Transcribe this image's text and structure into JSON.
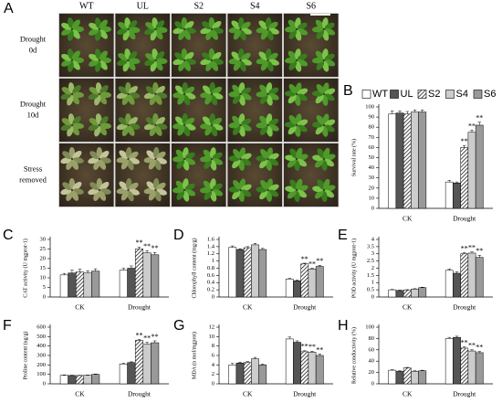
{
  "photo_panel": {
    "label": "A",
    "columns": [
      "WT",
      "UL",
      "S2",
      "S4",
      "S6"
    ],
    "rows": [
      [
        "Drought",
        "0d"
      ],
      [
        "Drought",
        "10d"
      ],
      [
        "Stress",
        "removed"
      ]
    ]
  },
  "chart_data": [
    {
      "type": "bar",
      "panel_label": "B",
      "ylabel": "Survival rate (%)",
      "categories": [
        "CK",
        "Drought"
      ],
      "ylim": [
        0,
        100
      ],
      "yticks": [
        0,
        10,
        20,
        30,
        40,
        50,
        60,
        70,
        80,
        90,
        100
      ],
      "legend": "top",
      "series": [
        {
          "name": "WT",
          "color": "#ffffff",
          "values": [
            93,
            26
          ],
          "errors": [
            3,
            1.5
          ],
          "significance": [
            null,
            null
          ]
        },
        {
          "name": "UL",
          "color": "#555555",
          "values": [
            94,
            25
          ],
          "errors": [
            2,
            1
          ],
          "significance": [
            null,
            null
          ]
        },
        {
          "name": "S2",
          "color": "#ffffff",
          "pattern": "hatch",
          "values": [
            93,
            60
          ],
          "errors": [
            2.5,
            2
          ],
          "significance": [
            null,
            "**"
          ]
        },
        {
          "name": "S4",
          "color": "#cccccc",
          "values": [
            95,
            75
          ],
          "errors": [
            2,
            2
          ],
          "significance": [
            null,
            "**"
          ]
        },
        {
          "name": "S6",
          "color": "#999999",
          "values": [
            95,
            82
          ],
          "errors": [
            2,
            3
          ],
          "significance": [
            null,
            "**"
          ]
        }
      ]
    },
    {
      "type": "bar",
      "panel_label": "C",
      "ylabel": "CAT activity (U mgprot-1)",
      "categories": [
        "CK",
        "Drought"
      ],
      "ylim": [
        0,
        30
      ],
      "yticks": [
        0,
        5,
        10,
        15,
        20,
        25,
        30
      ],
      "series": [
        {
          "color": "#ffffff",
          "values": [
            11.5,
            14
          ],
          "errors": [
            0.8,
            1
          ],
          "significance": [
            null,
            null
          ]
        },
        {
          "color": "#555555",
          "values": [
            12.5,
            15
          ],
          "errors": [
            1.5,
            1.2
          ],
          "significance": [
            null,
            null
          ]
        },
        {
          "color": "#ffffff",
          "pattern": "hatch",
          "values": [
            13,
            25
          ],
          "errors": [
            1.5,
            1
          ],
          "significance": [
            null,
            "**"
          ]
        },
        {
          "color": "#cccccc",
          "values": [
            12.5,
            23
          ],
          "errors": [
            1.2,
            1.2
          ],
          "significance": [
            null,
            "**"
          ]
        },
        {
          "color": "#999999",
          "values": [
            13.5,
            22
          ],
          "errors": [
            1.2,
            1.2
          ],
          "significance": [
            null,
            "**"
          ]
        }
      ]
    },
    {
      "type": "bar",
      "panel_label": "D",
      "ylabel": "Chlorophyll content (mg/g)",
      "categories": [
        "CK",
        "Drought"
      ],
      "ylim": [
        0,
        1.6
      ],
      "yticks": [
        0,
        0.2,
        0.4,
        0.6,
        0.8,
        1,
        1.2,
        1.4,
        1.6
      ],
      "series": [
        {
          "color": "#ffffff",
          "values": [
            1.38,
            0.5
          ],
          "errors": [
            0.04,
            0.02
          ],
          "significance": [
            null,
            null
          ]
        },
        {
          "color": "#555555",
          "values": [
            1.32,
            0.45
          ],
          "errors": [
            0.02,
            0.02
          ],
          "significance": [
            null,
            null
          ]
        },
        {
          "color": "#ffffff",
          "pattern": "hatch",
          "values": [
            1.37,
            0.92
          ],
          "errors": [
            0.03,
            0.02
          ],
          "significance": [
            null,
            "**"
          ]
        },
        {
          "color": "#cccccc",
          "values": [
            1.45,
            0.78
          ],
          "errors": [
            0.04,
            0.02
          ],
          "significance": [
            null,
            "**"
          ]
        },
        {
          "color": "#999999",
          "values": [
            1.32,
            0.85
          ],
          "errors": [
            0.03,
            0.03
          ],
          "significance": [
            null,
            "**"
          ]
        }
      ]
    },
    {
      "type": "bar",
      "panel_label": "E",
      "ylabel": "POD activity (U mgprot-1)",
      "categories": [
        "CK",
        "Drought"
      ],
      "ylim": [
        0,
        4
      ],
      "yticks": [
        0,
        0.5,
        1,
        1.5,
        2,
        2.5,
        3,
        3.5,
        4
      ],
      "series": [
        {
          "color": "#ffffff",
          "values": [
            0.5,
            1.85
          ],
          "errors": [
            0.03,
            0.1
          ],
          "significance": [
            null,
            null
          ]
        },
        {
          "color": "#555555",
          "values": [
            0.45,
            1.65
          ],
          "errors": [
            0.03,
            0.1
          ],
          "significance": [
            null,
            null
          ]
        },
        {
          "color": "#ffffff",
          "pattern": "hatch",
          "values": [
            0.48,
            3.0
          ],
          "errors": [
            0.03,
            0.08
          ],
          "significance": [
            null,
            "**"
          ]
        },
        {
          "color": "#cccccc",
          "values": [
            0.55,
            3.05
          ],
          "errors": [
            0.03,
            0.08
          ],
          "significance": [
            null,
            "**"
          ]
        },
        {
          "color": "#999999",
          "values": [
            0.65,
            2.75
          ],
          "errors": [
            0.03,
            0.15
          ],
          "significance": [
            null,
            "**"
          ]
        }
      ]
    },
    {
      "type": "bar",
      "panel_label": "F",
      "ylabel": "Proline content (ug/g)",
      "categories": [
        "CK",
        "Drought"
      ],
      "ylim": [
        0,
        600
      ],
      "yticks": [
        0,
        100,
        200,
        300,
        400,
        500,
        600
      ],
      "series": [
        {
          "color": "#ffffff",
          "values": [
            90,
            210
          ],
          "errors": [
            4,
            8
          ],
          "significance": [
            null,
            null
          ]
        },
        {
          "color": "#555555",
          "values": [
            88,
            225
          ],
          "errors": [
            4,
            8
          ],
          "significance": [
            null,
            null
          ]
        },
        {
          "color": "#ffffff",
          "pattern": "hatch",
          "values": [
            88,
            460
          ],
          "errors": [
            3,
            10
          ],
          "significance": [
            null,
            "**"
          ]
        },
        {
          "color": "#cccccc",
          "values": [
            90,
            420
          ],
          "errors": [
            3,
            20
          ],
          "significance": [
            null,
            "**"
          ]
        },
        {
          "color": "#999999",
          "values": [
            100,
            435
          ],
          "errors": [
            4,
            20
          ],
          "significance": [
            null,
            "**"
          ]
        }
      ]
    },
    {
      "type": "bar",
      "panel_label": "G",
      "ylabel": "MDA (n mol/mgprot)",
      "categories": [
        "CK",
        "Drought"
      ],
      "ylim": [
        0,
        12
      ],
      "yticks": [
        0,
        2,
        4,
        6,
        8,
        10,
        12
      ],
      "series": [
        {
          "color": "#ffffff",
          "values": [
            4.0,
            9.5
          ],
          "errors": [
            0.3,
            0.4
          ],
          "significance": [
            null,
            null
          ]
        },
        {
          "color": "#555555",
          "values": [
            4.4,
            8.8
          ],
          "errors": [
            0.2,
            0.3
          ],
          "significance": [
            null,
            null
          ]
        },
        {
          "color": "#ffffff",
          "pattern": "hatch",
          "values": [
            4.5,
            6.8
          ],
          "errors": [
            0.2,
            0.2
          ],
          "significance": [
            null,
            "**"
          ]
        },
        {
          "color": "#cccccc",
          "values": [
            5.3,
            6.7
          ],
          "errors": [
            0.3,
            0.2
          ],
          "significance": [
            null,
            "**"
          ]
        },
        {
          "color": "#999999",
          "values": [
            4.0,
            6.0
          ],
          "errors": [
            0.2,
            0.3
          ],
          "significance": [
            null,
            "**"
          ]
        }
      ]
    },
    {
      "type": "bar",
      "panel_label": "H",
      "ylabel": "Relative conductivity (%)",
      "categories": [
        "CK",
        "Drought"
      ],
      "ylim": [
        0,
        100
      ],
      "yticks": [
        0,
        20,
        40,
        60,
        80,
        100
      ],
      "series": [
        {
          "color": "#ffffff",
          "values": [
            24,
            80
          ],
          "errors": [
            1,
            2
          ],
          "significance": [
            null,
            null
          ]
        },
        {
          "color": "#555555",
          "values": [
            22,
            82
          ],
          "errors": [
            1,
            2
          ],
          "significance": [
            null,
            null
          ]
        },
        {
          "color": "#ffffff",
          "pattern": "hatch",
          "values": [
            28,
            63
          ],
          "errors": [
            1,
            2
          ],
          "significance": [
            null,
            "**"
          ]
        },
        {
          "color": "#cccccc",
          "values": [
            22,
            58
          ],
          "errors": [
            1,
            2
          ],
          "significance": [
            null,
            "**"
          ]
        },
        {
          "color": "#999999",
          "values": [
            23,
            55
          ],
          "errors": [
            1,
            2
          ],
          "significance": [
            null,
            "**"
          ]
        }
      ]
    }
  ]
}
